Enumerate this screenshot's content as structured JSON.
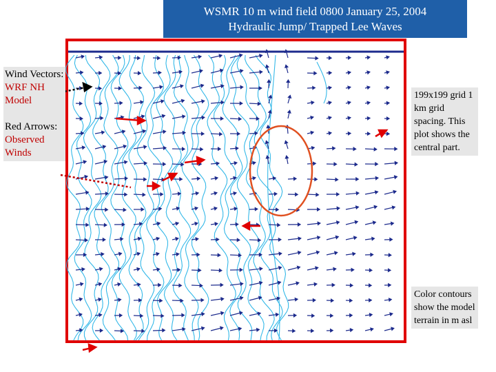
{
  "header": {
    "title_lines": [
      "WSMR 10 m wind field 0800 January 25, 2004",
      "Hydraulic Jump/ Trapped Lee Waves"
    ]
  },
  "legend": {
    "wind_label": "Wind Vectors:",
    "wind_source": "WRF NH Model",
    "arrow_label": "Red Arrows:",
    "arrow_source": "Observed Winds"
  },
  "notes": [
    "199x199 grid 1 km grid spacing. This plot shows the central part.",
    "Color contours show the model terrain in m asl"
  ]
}
